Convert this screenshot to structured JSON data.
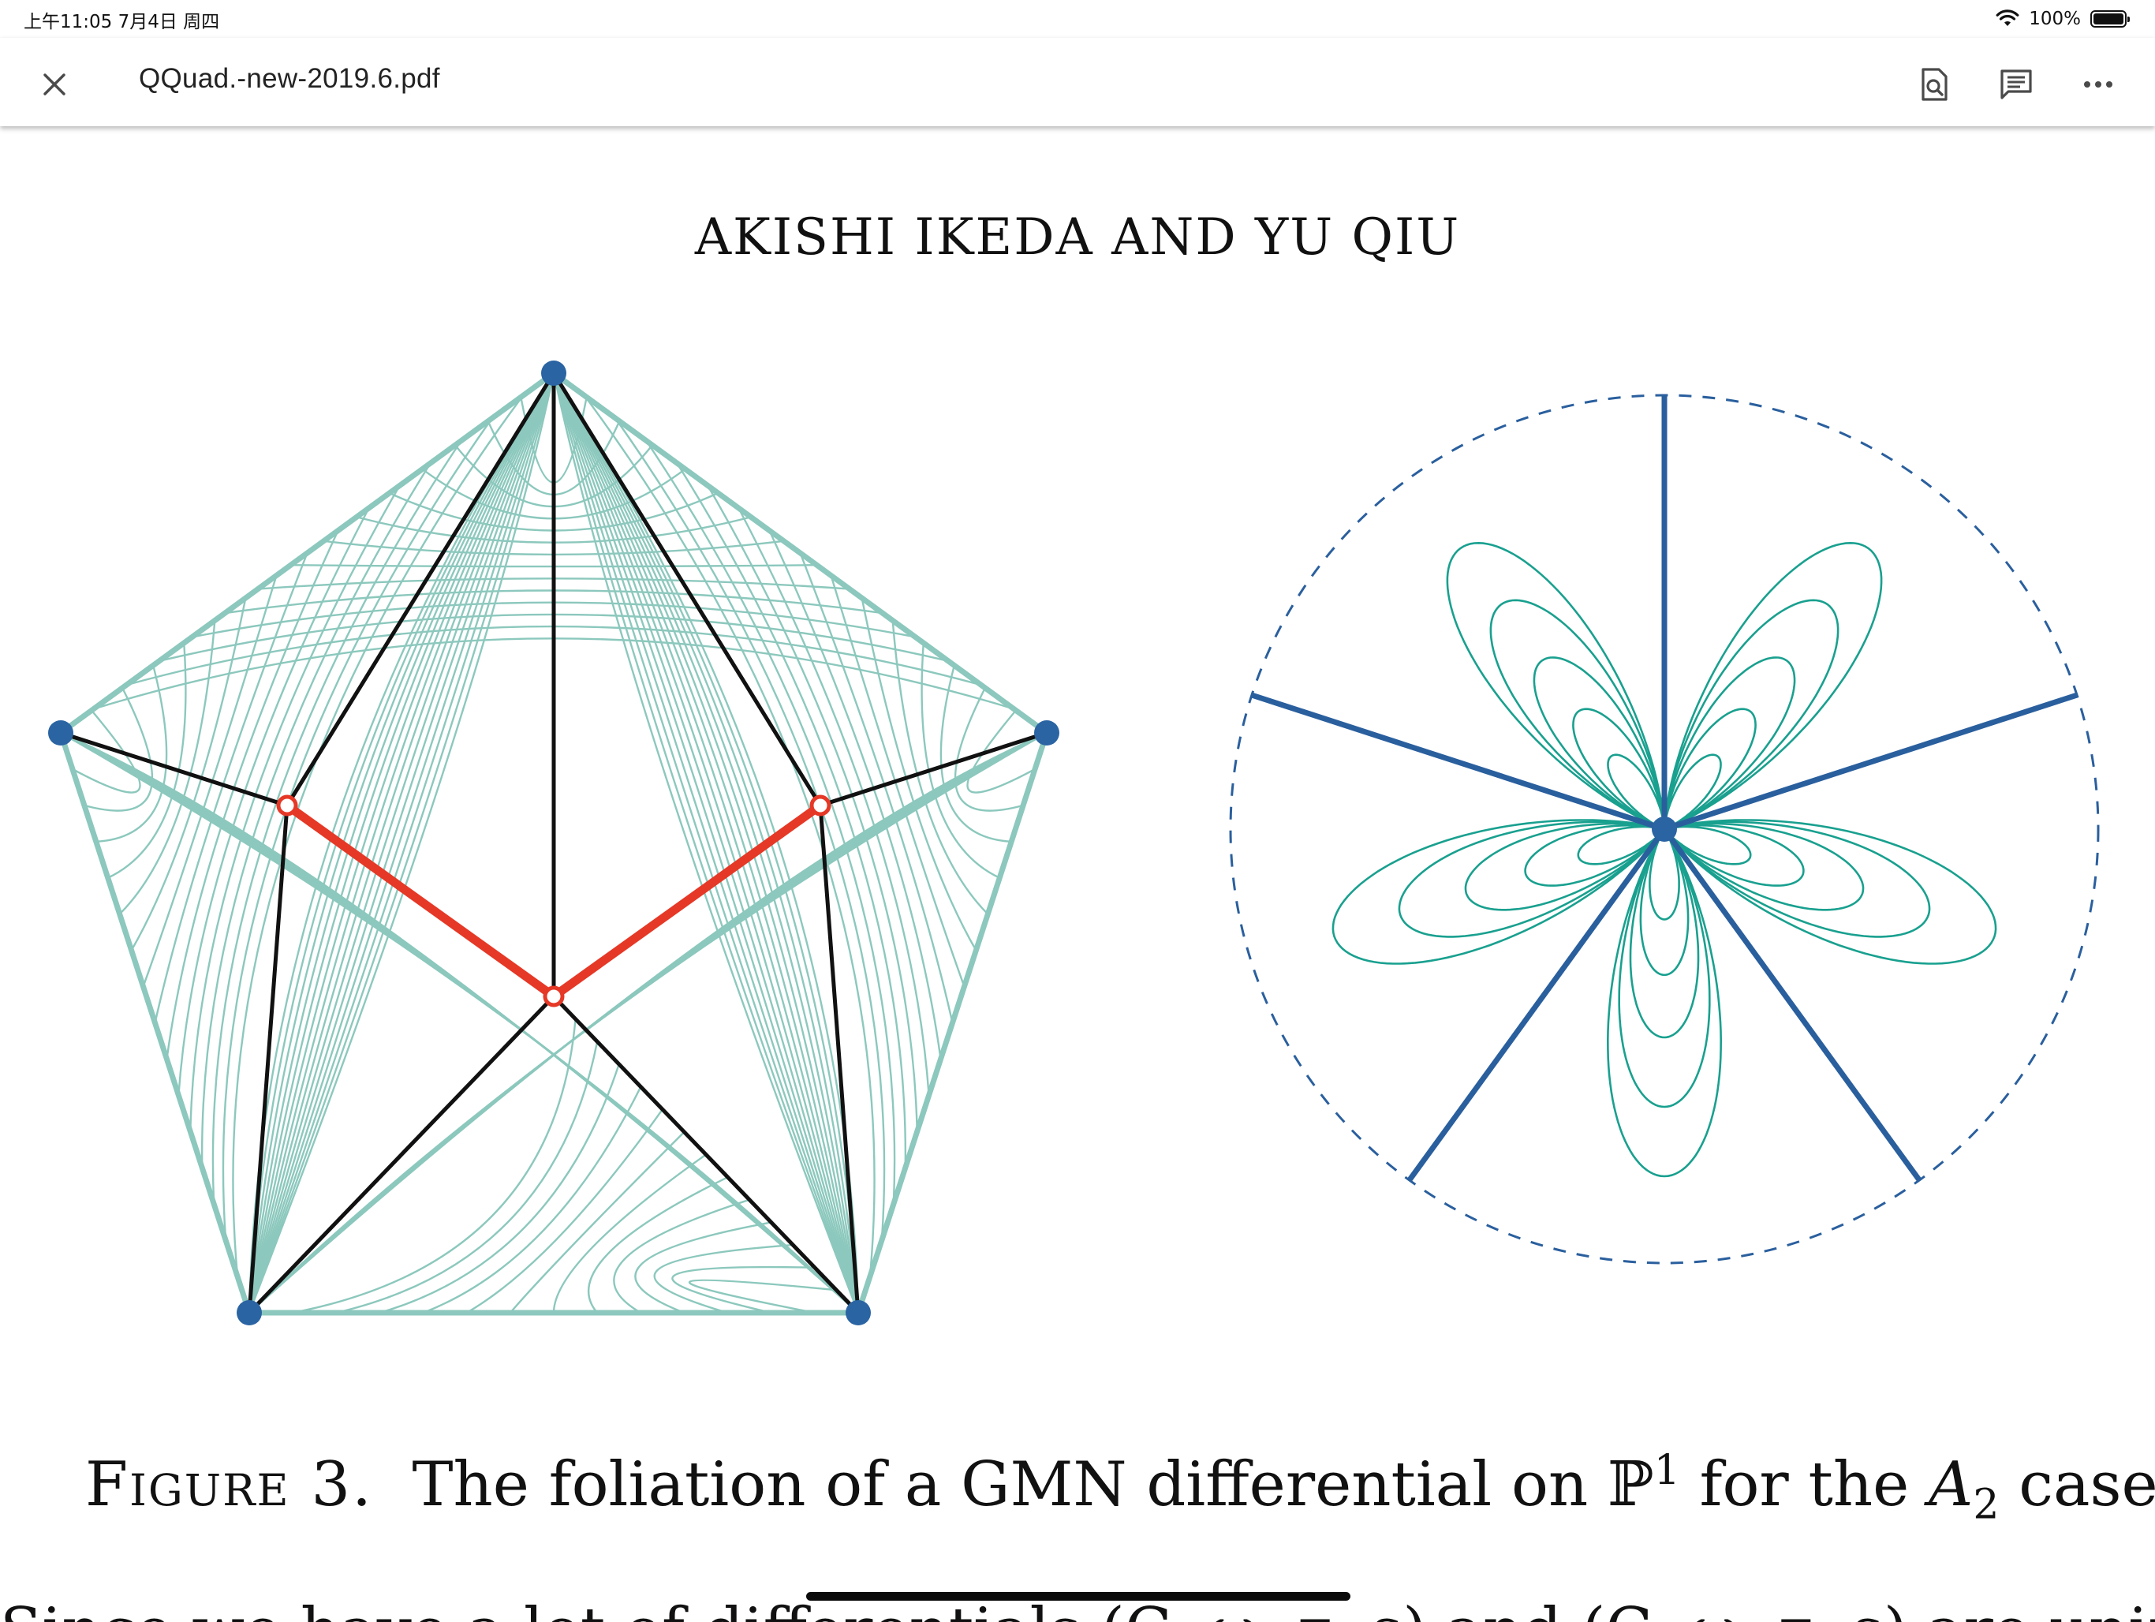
{
  "status_bar": {
    "time_date": "上午11:05   7月4日 周四",
    "battery_percent": "100%",
    "battery_level": 1.0,
    "wifi_icon": "wifi-icon",
    "battery_icon": "battery-icon"
  },
  "toolbar": {
    "close_icon": "close-icon",
    "document_title": "QQuad.-new-2019.6.pdf",
    "find_icon": "document-search-icon",
    "comment_icon": "comment-icon",
    "more_icon": "more-horizontal-icon"
  },
  "page": {
    "running_head": "AKISHI IKEDA AND YU QIU",
    "caption": {
      "label": "Figure 3.",
      "text_before_p": "The foliation of a GMN differential on ",
      "p_symbol": "ℙ",
      "p_superscript": "1",
      "text_middle": " for the ",
      "a_symbol": "A",
      "a_subscript": "2",
      "text_end": " case"
    },
    "cut_off_text": "Since we have a lot of differentials (C, ω, τ, s) and (C, ω, τ, s) are uniformly"
  },
  "colors": {
    "foliation_teal": "#8cc8bd",
    "petal_teal": "#19a08f",
    "vertex_blue": "#2a64a3",
    "edge_black": "#111111",
    "saddle_red": "#e63826",
    "ray_blue": "#2a5f9e"
  }
}
